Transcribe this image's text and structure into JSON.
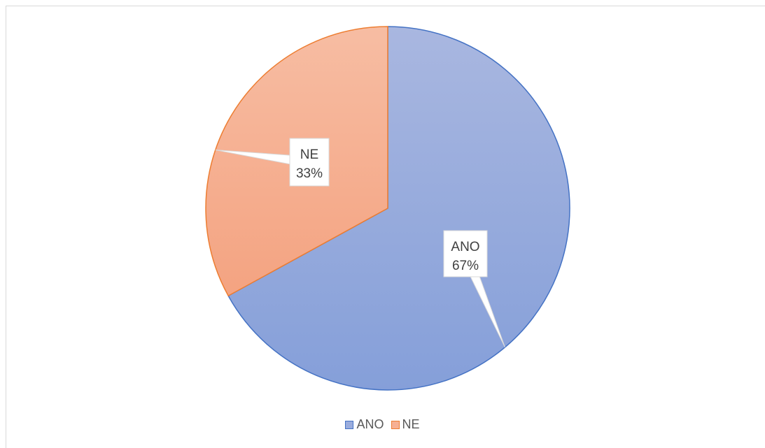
{
  "chart_data": {
    "type": "pie",
    "title": "",
    "categories": [
      "ANO",
      "NE"
    ],
    "values": [
      67,
      33
    ],
    "unit": "%",
    "data_labels": [
      {
        "category": "ANO",
        "percent": "67%"
      },
      {
        "category": "NE",
        "percent": "33%"
      }
    ],
    "colors": {
      "ANO": {
        "fill_top": "#a9b7e0",
        "fill_bottom": "#859fd9",
        "stroke": "#4472c4"
      },
      "NE": {
        "fill_top": "#f7bda3",
        "fill_bottom": "#f4a381",
        "stroke": "#ed7d31"
      }
    },
    "legend": {
      "position": "bottom",
      "entries": [
        "ANO",
        "NE"
      ]
    }
  }
}
